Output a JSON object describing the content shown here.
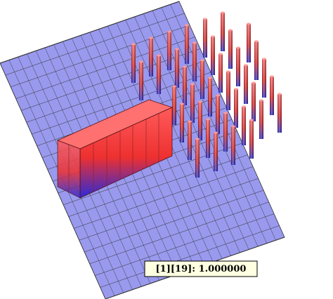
{
  "tooltip": {
    "text": "[1][19]: 1.000000"
  }
}
